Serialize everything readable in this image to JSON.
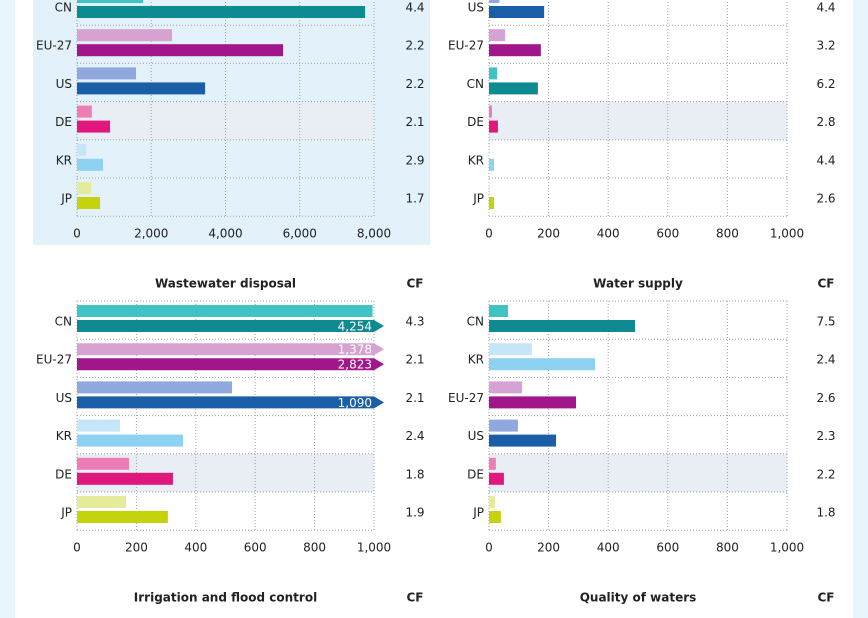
{
  "chart_data": [
    {
      "type": "bar",
      "orientation": "horizontal",
      "highlight": "DE",
      "cf_values": [
        4.4,
        2.2,
        2.2,
        2.1,
        2.9,
        1.7
      ],
      "categories": [
        "CN",
        "EU-27",
        "US",
        "DE",
        "KR",
        "JP"
      ],
      "series": [
        {
          "colors": [
            "#3fc3c4",
            "#d6a2d2",
            "#8fa8dd",
            "#ef7db5",
            "#c4e6f8",
            "#e6eb9c"
          ],
          "values": [
            1780,
            2560,
            1590,
            400,
            240,
            380
          ]
        },
        {
          "colors": [
            "#0e8b91",
            "#a1168a",
            "#1a5ea8",
            "#e0187d",
            "#8ed2f3",
            "#c4d30c"
          ],
          "values": [
            7760,
            5550,
            3450,
            890,
            700,
            620
          ]
        }
      ],
      "xlim": [
        0,
        8000
      ],
      "xticks": [
        0,
        {
          "value": 2000,
          "label": "2,000"
        },
        {
          "value": 4000,
          "label": "4,000"
        },
        {
          "value": 6000,
          "label": "6,000"
        },
        {
          "value": 8000,
          "label": "8,000"
        }
      ]
    },
    {
      "type": "bar",
      "orientation": "horizontal",
      "highlight": "DE",
      "cf_values": [
        4.4,
        3.2,
        6.2,
        2.8,
        4.4,
        2.6
      ],
      "categories": [
        "US",
        "EU-27",
        "CN",
        "DE",
        "KR",
        "JP"
      ],
      "series": [
        {
          "colors": [
            "#8fa8dd",
            "#d6a2d2",
            "#3fc3c4",
            "#ef7db5",
            "#c4e6f8",
            "#e6eb9c"
          ],
          "values": [
            35,
            54,
            27,
            10,
            2,
            2
          ]
        },
        {
          "colors": [
            "#1a5ea8",
            "#a1168a",
            "#0e8b91",
            "#e0187d",
            "#8ed2f3",
            "#c4d30c"
          ],
          "values": [
            185,
            174,
            164,
            30,
            17,
            17
          ]
        }
      ],
      "xlim": [
        0,
        1000
      ],
      "xticks": [
        0,
        200,
        400,
        600,
        800,
        {
          "value": 1000,
          "label": "1,000"
        }
      ]
    },
    {
      "type": "bar",
      "orientation": "horizontal",
      "title": "Wastewater disposal",
      "cf_label": "CF",
      "highlight": "DE",
      "cf_values": [
        4.3,
        2.1,
        2.1,
        2.4,
        1.8,
        1.9
      ],
      "categories": [
        "CN",
        "EU-27",
        "US",
        "KR",
        "DE",
        "JP"
      ],
      "series": [
        {
          "colors": [
            "#3fc3c4",
            "#d6a2d2",
            "#8fa8dd",
            "#c4e6f8",
            "#ef7db5",
            "#e6eb9c"
          ],
          "values": [
            995,
            1378,
            522,
            145,
            175,
            165
          ],
          "value_labels": [
            null,
            "1,378",
            null,
            null,
            null,
            null
          ]
        },
        {
          "colors": [
            "#0e8b91",
            "#a1168a",
            "#1a5ea8",
            "#8ed2f3",
            "#e0187d",
            "#c4d30c"
          ],
          "values": [
            4254,
            2823,
            1090,
            357,
            323,
            306
          ],
          "value_labels": [
            "4,254",
            "2,823",
            "1,090",
            null,
            null,
            null
          ]
        }
      ],
      "xlim": [
        0,
        1000
      ],
      "xticks": [
        0,
        200,
        400,
        600,
        800,
        {
          "value": 1000,
          "label": "1,000"
        }
      ]
    },
    {
      "type": "bar",
      "orientation": "horizontal",
      "title": "Water supply",
      "cf_label": "CF",
      "highlight": "DE",
      "cf_values": [
        7.5,
        2.4,
        2.6,
        2.3,
        2.2,
        1.8
      ],
      "categories": [
        "CN",
        "KR",
        "EU-27",
        "US",
        "DE",
        "JP"
      ],
      "series": [
        {
          "colors": [
            "#3fc3c4",
            "#c4e6f8",
            "#d6a2d2",
            "#8fa8dd",
            "#ef7db5",
            "#e6eb9c"
          ],
          "values": [
            64,
            144,
            111,
            97,
            23,
            20
          ]
        },
        {
          "colors": [
            "#0e8b91",
            "#8ed2f3",
            "#a1168a",
            "#1a5ea8",
            "#e0187d",
            "#c4d30c"
          ],
          "values": [
            490,
            356,
            292,
            225,
            50,
            40
          ]
        }
      ],
      "xlim": [
        0,
        1000
      ],
      "xticks": [
        0,
        200,
        400,
        600,
        800,
        {
          "value": 1000,
          "label": "1,000"
        }
      ]
    },
    {
      "type": "bar",
      "title": "Irrigation and flood control",
      "cf_label": "CF"
    },
    {
      "type": "bar",
      "title": "Quality of waters",
      "cf_label": "CF"
    }
  ]
}
